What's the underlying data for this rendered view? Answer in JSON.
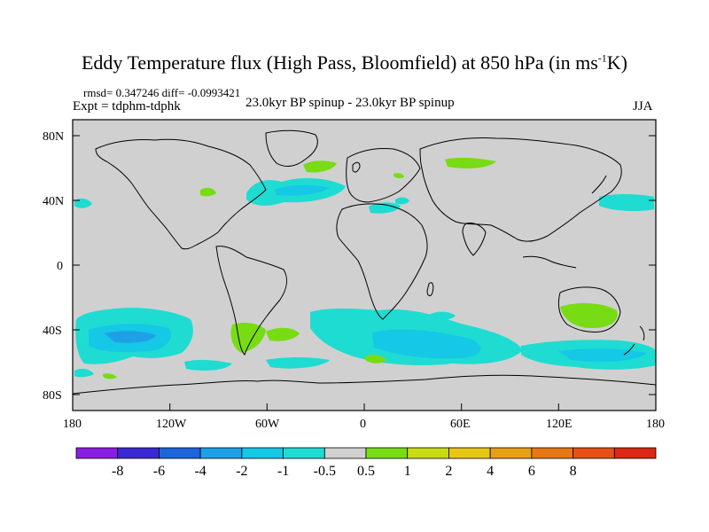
{
  "title": {
    "main": "Eddy Temperature flux (High Pass, Bloomfield) at 850 hPa (in ms",
    "unit_exp": "-1",
    "unit_end": "K)"
  },
  "stats_line": "rmsd= 0.347246 diff= -0.0993421",
  "expt_line": "Expt = tdphm-tdphk",
  "subtitle": "23.0kyr BP spinup - 23.0kyr BP spinup",
  "season": "JJA",
  "lat_labels": [
    "80N",
    "40N",
    "0",
    "40S",
    "80S"
  ],
  "lon_labels": [
    "180",
    "120W",
    "60W",
    "0",
    "60E",
    "120E",
    "180"
  ],
  "colorbar": {
    "colors": [
      "#8a1ee6",
      "#3c28d2",
      "#1e64dc",
      "#1ea0e6",
      "#14c8e6",
      "#1edcd2",
      "#d0d0d0",
      "#78dc14",
      "#c8dc14",
      "#e6c814",
      "#e6a014",
      "#e67814",
      "#e65014",
      "#dc2814"
    ],
    "labels": [
      "-8",
      "-6",
      "-4",
      "-2",
      "-1",
      "-0.5",
      "0.5",
      "1",
      "2",
      "4",
      "6",
      "8"
    ]
  },
  "map": {
    "background_color": "#d0d0d0",
    "land_outline_color": "#000000",
    "field_colors": {
      "light_cyan": "#1edcd2",
      "medium_cyan": "#14c8e6",
      "blue": "#1ea0e6",
      "green": "#78dc14"
    },
    "regions": [
      {
        "name": "north-atlantic-anomaly",
        "class": "medium_cyan",
        "lon": -35,
        "lat": 42
      },
      {
        "name": "east-pacific-anomaly",
        "class": "light_cyan",
        "lon": -140,
        "lat": -45
      },
      {
        "name": "southern-indian-ocean-anomaly",
        "class": "light_cyan",
        "lon": 40,
        "lat": -50
      },
      {
        "name": "southern-ocean-australia-anomaly",
        "class": "light_cyan",
        "lon": 130,
        "lat": -55
      },
      {
        "name": "australia-anomaly",
        "class": "green",
        "lon": 135,
        "lat": -30
      },
      {
        "name": "south-atlantic-anomaly",
        "class": "green",
        "lon": -45,
        "lat": -45
      },
      {
        "name": "siberia-anomaly",
        "class": "green",
        "lon": 60,
        "lat": 60
      },
      {
        "name": "greenland-anomaly",
        "class": "green",
        "lon": -30,
        "lat": 65
      }
    ]
  }
}
